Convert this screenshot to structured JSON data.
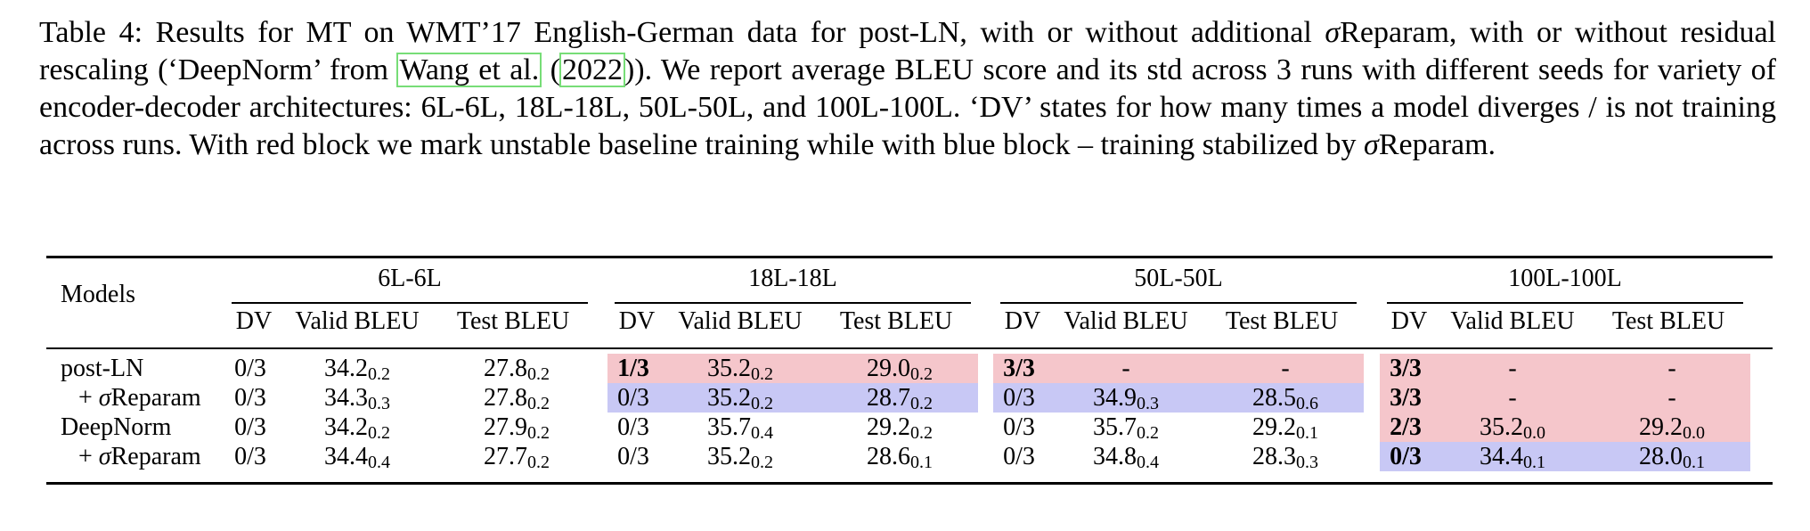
{
  "caption": {
    "part1": "Table 4: Results for MT on WMT’17 English-German data for post-LN, with or without additional ",
    "sigma1": "σ",
    "part2": "Reparam, with or without residual rescaling (‘DeepNorm’ from ",
    "cite_author": "Wang et al.",
    "cite_paren_open": " (",
    "cite_year": "2022",
    "part3": ")). We report average BLEU score and its std across 3 runs with different seeds for variety of encoder-decoder architectures: 6L-6L, 18L-18L, 50L-50L, and 100L-100L. ‘DV’ states for how many times a model diverges / is not training across runs. With red block we mark unstable baseline training while with blue block – training stabilized by ",
    "sigma2": "σ",
    "part4": "Reparam."
  },
  "table": {
    "models_header": "Models",
    "groups": [
      "6L-6L",
      "18L-18L",
      "50L-50L",
      "100L-100L"
    ],
    "sub_headers": [
      "DV",
      "Valid BLEU",
      "Test BLEU"
    ],
    "rows": [
      {
        "model": "post-LN",
        "cells": [
          {
            "v": "0/3",
            "bg": "",
            "b": false
          },
          {
            "v": "34.2",
            "s": "0.2",
            "bg": ""
          },
          {
            "v": "27.8",
            "s": "0.2",
            "bg": ""
          },
          {
            "v": "1/3",
            "bg": "red",
            "b": true
          },
          {
            "v": "35.2",
            "s": "0.2",
            "bg": "red"
          },
          {
            "v": "29.0",
            "s": "0.2",
            "bg": "red"
          },
          {
            "v": "3/3",
            "bg": "red",
            "b": true
          },
          {
            "v": "-",
            "s": "",
            "bg": "red"
          },
          {
            "v": "-",
            "s": "",
            "bg": "red"
          },
          {
            "v": "3/3",
            "bg": "red",
            "b": true
          },
          {
            "v": "-",
            "s": "",
            "bg": "red"
          },
          {
            "v": "-",
            "s": "",
            "bg": "red"
          }
        ]
      },
      {
        "model": "+ σReparam",
        "cells": [
          {
            "v": "0/3",
            "bg": "",
            "b": false
          },
          {
            "v": "34.3",
            "s": "0.3",
            "bg": ""
          },
          {
            "v": "27.8",
            "s": "0.2",
            "bg": ""
          },
          {
            "v": "0/3",
            "bg": "blue",
            "b": false
          },
          {
            "v": "35.2",
            "s": "0.2",
            "bg": "blue"
          },
          {
            "v": "28.7",
            "s": "0.2",
            "bg": "blue"
          },
          {
            "v": "0/3",
            "bg": "blue",
            "b": false
          },
          {
            "v": "34.9",
            "s": "0.3",
            "bg": "blue"
          },
          {
            "v": "28.5",
            "s": "0.6",
            "bg": "blue"
          },
          {
            "v": "3/3",
            "bg": "red",
            "b": true
          },
          {
            "v": "-",
            "s": "",
            "bg": "red"
          },
          {
            "v": "-",
            "s": "",
            "bg": "red"
          }
        ]
      },
      {
        "model": "DeepNorm",
        "cells": [
          {
            "v": "0/3",
            "bg": "",
            "b": false
          },
          {
            "v": "34.2",
            "s": "0.2",
            "bg": ""
          },
          {
            "v": "27.9",
            "s": "0.2",
            "bg": ""
          },
          {
            "v": "0/3",
            "bg": "",
            "b": false
          },
          {
            "v": "35.7",
            "s": "0.4",
            "bg": ""
          },
          {
            "v": "29.2",
            "s": "0.2",
            "bg": ""
          },
          {
            "v": "0/3",
            "bg": "",
            "b": false
          },
          {
            "v": "35.7",
            "s": "0.2",
            "bg": ""
          },
          {
            "v": "29.2",
            "s": "0.1",
            "bg": ""
          },
          {
            "v": "2/3",
            "bg": "red",
            "b": true
          },
          {
            "v": "35.2",
            "s": "0.0",
            "bg": "red"
          },
          {
            "v": "29.2",
            "s": "0.0",
            "bg": "red"
          }
        ]
      },
      {
        "model": "+ σReparam",
        "cells": [
          {
            "v": "0/3",
            "bg": "",
            "b": false
          },
          {
            "v": "34.4",
            "s": "0.4",
            "bg": ""
          },
          {
            "v": "27.7",
            "s": "0.2",
            "bg": ""
          },
          {
            "v": "0/3",
            "bg": "",
            "b": false
          },
          {
            "v": "35.2",
            "s": "0.2",
            "bg": ""
          },
          {
            "v": "28.6",
            "s": "0.1",
            "bg": ""
          },
          {
            "v": "0/3",
            "bg": "",
            "b": false
          },
          {
            "v": "34.8",
            "s": "0.4",
            "bg": ""
          },
          {
            "v": "28.3",
            "s": "0.3",
            "bg": ""
          },
          {
            "v": "0/3",
            "bg": "blue",
            "b": true
          },
          {
            "v": "34.4",
            "s": "0.1",
            "bg": "blue"
          },
          {
            "v": "28.0",
            "s": "0.1",
            "bg": "blue"
          }
        ]
      }
    ]
  }
}
